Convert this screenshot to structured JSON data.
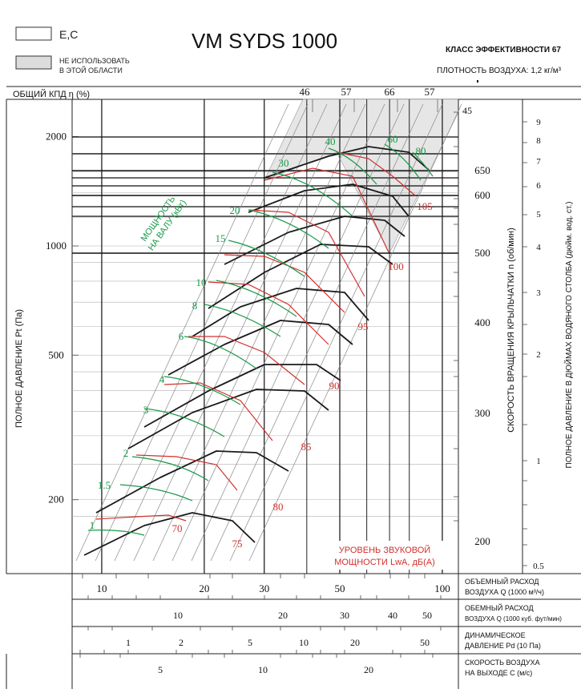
{
  "legend": {
    "items": [
      {
        "label": "E,C"
      },
      {
        "label_line1": "НЕ ИСПОЛЬЗОВАТЬ",
        "label_line2": "В ЭТОЙ ОБЛАСТИ"
      }
    ]
  },
  "header": {
    "title": "VM SYDS 1000",
    "efficiency_class": "КЛАСС ЭФФЕКТИВНОСТИ 67",
    "air_density": "ПЛОТНОСТЬ ВОЗДУХА: 1,2 кг/м³"
  },
  "colors": {
    "system": "#1a1a1a",
    "power": "#1a9a4a",
    "sound": "#d0312d",
    "shade": "#e6e6e6",
    "grid": "#9a9a9a"
  },
  "chart_data": {
    "type": "line",
    "title": "VM SYDS 1000",
    "log_scale": true,
    "axes": {
      "efficiency_label": "ОБЩИЙ КПД η (%)",
      "efficiency_ticks": [
        "46",
        "57",
        "66",
        "57"
      ],
      "y_left_label": "ПОЛНОЕ ДАВЛЕНИЕ Pt (Па)",
      "y_left_ticks": [
        "2000",
        "1000",
        "500",
        "200"
      ],
      "y_left_values": [
        2000,
        1000,
        500,
        200
      ],
      "speed_label": "СКОРОСТЬ ВРАЩЕНИЯ КРЫЛЬЧАТКИ  n (об/мин)",
      "speed_ticks": [
        "650",
        "600",
        "500",
        "400",
        "300",
        "200"
      ],
      "inwg_label": "ПОЛНОЕ ДАВЛЕНИЕ В ДЮЙМАХ ВОДЯНОГО СТОЛБА (дюйм. вод. ст.)",
      "inwg_ticks": [
        "9",
        "8",
        "7",
        "6",
        "5",
        "4",
        "3",
        "2",
        "1",
        "0.5"
      ],
      "x_flow_label_1": "ОБЪЕМНЫЙ РАСХОД",
      "x_flow_label_2": "ВОЗДУХА Q (1000 м³/ч)",
      "x_flow_ticks": [
        "10",
        "20",
        "30",
        "50",
        "100"
      ],
      "x_flow_values": [
        10,
        20,
        30,
        50,
        100
      ],
      "x_cfm_label_1": "ОБЕМНЫЙ РАСХОД",
      "x_cfm_label_2": "ВОЗДУХА Q (1000 куб. фут/мин)",
      "x_cfm_ticks": [
        "10",
        "20",
        "30",
        "40",
        "50"
      ],
      "x_pd_label_1": "ДИНАМИЧЕСКОЕ",
      "x_pd_label_2": "ДАВЛЕНИЕ Pd (10 Па)",
      "x_pd_ticks": [
        "1",
        "2",
        "5",
        "10",
        "20",
        "50"
      ],
      "x_vel_label_1": "СКОРОСТЬ ВОЗДУХА",
      "x_vel_label_2": "НА ВЫХОДЕ C (м/с)",
      "x_vel_ticks": [
        "5",
        "10",
        "20"
      ]
    },
    "power_label_line1": "МОЩНОСТЬ",
    "power_label_line2": "НА ВАЛУ (кВт)",
    "power_values": [
      "1",
      "1.5",
      "2",
      "3",
      "4",
      "6",
      "8",
      "10",
      "15",
      "20",
      "30",
      "40",
      "60",
      "80"
    ],
    "sound_label_line1": "УРОВЕНЬ ЗВУКОВОЙ",
    "sound_label_line2": "МОЩНОСТИ LwA, дБ(А)",
    "sound_values": [
      "70",
      "75",
      "80",
      "85",
      "90",
      "95",
      "100",
      "105"
    ],
    "speed_curves_rpm": [
      200,
      300,
      400,
      500,
      600,
      650
    ]
  }
}
